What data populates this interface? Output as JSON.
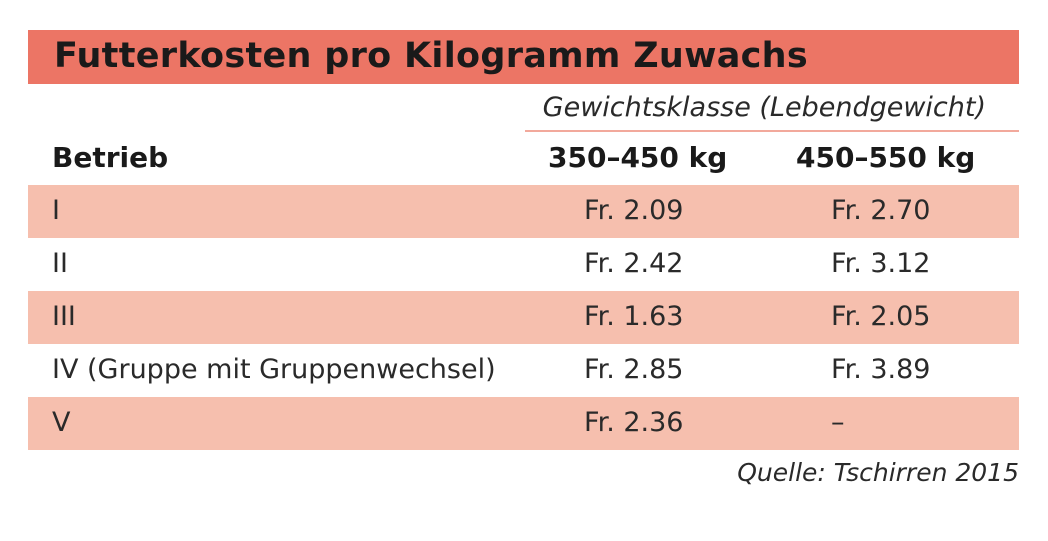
{
  "title": "Futterkosten pro Kilogramm Zuwachs",
  "group_header": "Gewichtsklasse (Lebendgewicht)",
  "columns": {
    "betrieb": "Betrieb",
    "class1": "350–450 kg",
    "class2": "450–550 kg"
  },
  "rows": [
    {
      "betrieb": "I",
      "class1": "Fr. 2.09",
      "class2": "Fr. 2.70"
    },
    {
      "betrieb": "II",
      "class1": "Fr. 2.42",
      "class2": "Fr. 3.12"
    },
    {
      "betrieb": "III",
      "class1": "Fr. 1.63",
      "class2": "Fr. 2.05"
    },
    {
      "betrieb": "IV (Gruppe mit Gruppenwechsel)",
      "class1": "Fr. 2.85",
      "class2": "Fr. 3.89"
    },
    {
      "betrieb": "V",
      "class1": "Fr. 2.36",
      "class2": "–"
    }
  ],
  "source": "Quelle: Tschirren 2015",
  "colors": {
    "title_bar": "#ec7565",
    "row_shade": "#f6bfae",
    "rule": "#f2a99c"
  }
}
